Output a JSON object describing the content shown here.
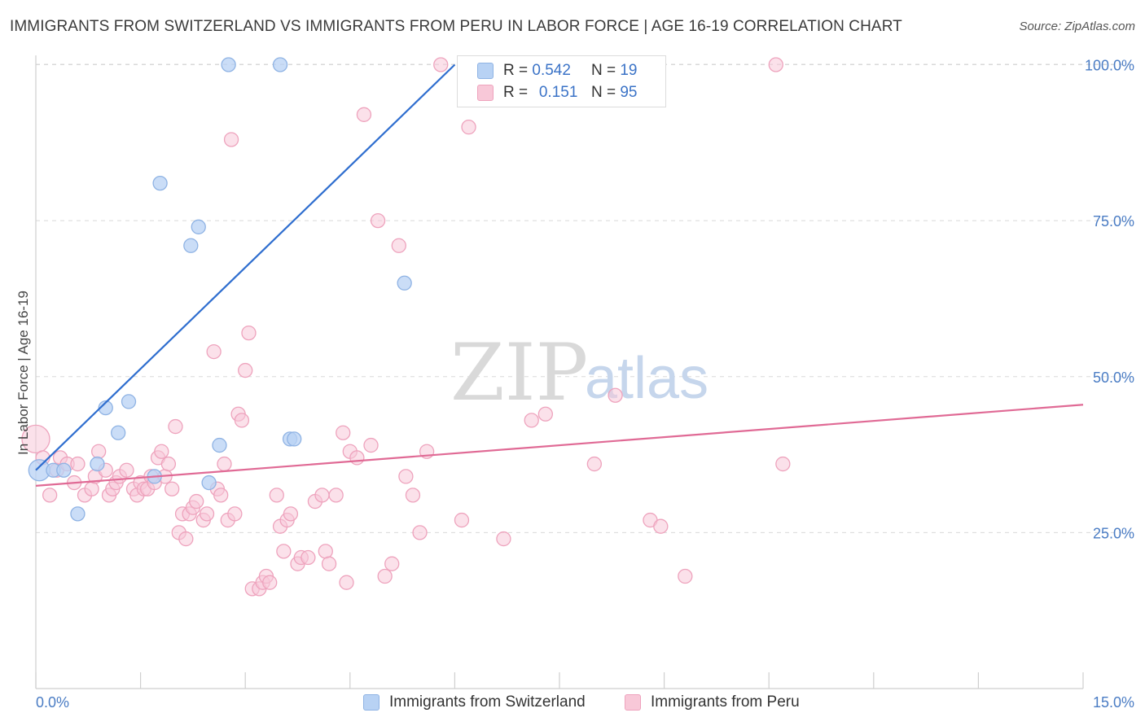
{
  "title": "IMMIGRANTS FROM SWITZERLAND VS IMMIGRANTS FROM PERU IN LABOR FORCE | AGE 16-19 CORRELATION CHART",
  "source": "Source: ZipAtlas.com",
  "watermark": {
    "zip": "ZIP",
    "atlas": "atlas"
  },
  "legend": {
    "r_label": "R =",
    "n_label": "N =",
    "switzerland": {
      "r": "0.542",
      "n": "19"
    },
    "peru": {
      "r": "0.151",
      "n": "95"
    }
  },
  "colors": {
    "switzerland_fill": "#b8d2f4",
    "switzerland_stroke": "#8fb3e4",
    "switzerland_line": "#2f6ecf",
    "peru_fill": "#f8c8d8",
    "peru_stroke": "#eea3bd",
    "peru_line": "#e06a95",
    "grid": "#d9d9d9",
    "tick_text": "#4a7cc4"
  },
  "chart_data": {
    "type": "scatter",
    "title": "IMMIGRANTS FROM SWITZERLAND VS IMMIGRANTS FROM PERU IN LABOR FORCE | AGE 16-19 CORRELATION CHART",
    "xlabel": "",
    "ylabel": "In Labor Force | Age 16-19",
    "xlim": [
      0,
      15
    ],
    "ylim": [
      0,
      105
    ],
    "x_tick_labels": [
      "0.0%",
      "15.0%"
    ],
    "y_ticks": [
      25,
      50,
      75,
      100
    ],
    "y_tick_labels": [
      "25.0%",
      "50.0%",
      "75.0%",
      "100.0%"
    ],
    "grid": true,
    "series": [
      {
        "name": "Immigrants from Switzerland",
        "x": [
          0.05,
          0.25,
          0.4,
          0.6,
          0.88,
          1.0,
          1.18,
          1.33,
          1.7,
          1.78,
          2.22,
          2.33,
          2.48,
          2.63,
          2.76,
          3.5,
          3.64,
          3.7,
          5.28
        ],
        "y": [
          35,
          35,
          35,
          28,
          36,
          45,
          41,
          46,
          34,
          81,
          71,
          74,
          33,
          39,
          100,
          100,
          40,
          40,
          65
        ],
        "trend": {
          "x": [
            0.0,
            6.0
          ],
          "y": [
            35.0,
            100.0
          ]
        }
      },
      {
        "name": "Immigrants from Peru",
        "x": [
          0.0,
          0.1,
          0.2,
          0.3,
          0.35,
          0.45,
          0.55,
          0.6,
          0.7,
          0.8,
          0.85,
          0.9,
          1.0,
          1.05,
          1.1,
          1.15,
          1.2,
          1.3,
          1.4,
          1.45,
          1.5,
          1.55,
          1.6,
          1.65,
          1.7,
          1.75,
          1.8,
          1.85,
          1.9,
          1.95,
          2.0,
          2.05,
          2.1,
          2.15,
          2.2,
          2.25,
          2.3,
          2.4,
          2.45,
          2.55,
          2.6,
          2.65,
          2.7,
          2.75,
          2.8,
          2.85,
          2.9,
          2.95,
          3.0,
          3.05,
          3.1,
          3.2,
          3.25,
          3.3,
          3.35,
          3.45,
          3.5,
          3.55,
          3.6,
          3.65,
          3.75,
          3.8,
          3.9,
          4.0,
          4.1,
          4.15,
          4.2,
          4.3,
          4.4,
          4.45,
          4.5,
          4.6,
          4.7,
          4.8,
          4.9,
          5.0,
          5.1,
          5.2,
          5.3,
          5.4,
          5.5,
          5.6,
          5.8,
          6.1,
          6.2,
          6.7,
          7.1,
          7.3,
          8.0,
          8.3,
          8.8,
          8.95,
          9.3,
          10.6,
          10.7
        ],
        "y": [
          40,
          37,
          31,
          35,
          37,
          36,
          33,
          36,
          31,
          32,
          34,
          38,
          35,
          31,
          32,
          33,
          34,
          35,
          32,
          31,
          33,
          32,
          32,
          34,
          33,
          37,
          38,
          34,
          36,
          32,
          42,
          25,
          28,
          24,
          28,
          29,
          30,
          27,
          28,
          54,
          32,
          31,
          36,
          27,
          88,
          28,
          44,
          43,
          51,
          57,
          16,
          16,
          17,
          18,
          17,
          31,
          26,
          22,
          27,
          28,
          20,
          21,
          21,
          30,
          31,
          22,
          20,
          31,
          41,
          17,
          38,
          37,
          92,
          39,
          75,
          18,
          20,
          71,
          34,
          31,
          25,
          38,
          100,
          27,
          90,
          24,
          43,
          44,
          36,
          47,
          27,
          26,
          18,
          100,
          36
        ],
        "trend": {
          "x": [
            0.0,
            15.0
          ],
          "y": [
            32.5,
            45.5
          ]
        }
      }
    ]
  }
}
